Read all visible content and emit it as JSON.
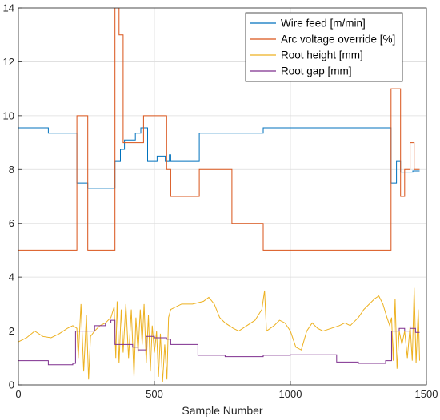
{
  "chart_data": {
    "type": "line",
    "title": "",
    "xlabel": "Sample Number",
    "ylabel": "",
    "xlim": [
      0,
      1500
    ],
    "ylim": [
      0,
      14
    ],
    "xticks": [
      0,
      500,
      1000,
      1500
    ],
    "yticks": [
      0,
      2,
      4,
      6,
      8,
      10,
      12,
      14
    ],
    "grid": true,
    "legend": "top-right",
    "series": [
      {
        "name": "Wire feed [m/min]",
        "color": "#0072BD",
        "step": true,
        "points": [
          [
            0,
            9.55
          ],
          [
            110,
            9.35
          ],
          [
            215,
            7.5
          ],
          [
            255,
            7.3
          ],
          [
            355,
            8.3
          ],
          [
            375,
            8.75
          ],
          [
            390,
            9.1
          ],
          [
            430,
            9.35
          ],
          [
            450,
            9.55
          ],
          [
            475,
            8.3
          ],
          [
            510,
            8.5
          ],
          [
            540,
            8.3
          ],
          [
            555,
            8.55
          ],
          [
            560,
            8.3
          ],
          [
            665,
            9.35
          ],
          [
            900,
            9.55
          ],
          [
            1370,
            7.5
          ],
          [
            1390,
            8.3
          ],
          [
            1405,
            7.9
          ],
          [
            1450,
            7.95
          ],
          [
            1475,
            7.95
          ]
        ]
      },
      {
        "name": "Arc voltage override [%]",
        "color": "#D95319",
        "step": true,
        "points": [
          [
            0,
            5
          ],
          [
            215,
            10
          ],
          [
            255,
            5
          ],
          [
            355,
            14
          ],
          [
            370,
            13
          ],
          [
            385,
            9
          ],
          [
            430,
            9
          ],
          [
            460,
            10
          ],
          [
            545,
            8
          ],
          [
            560,
            7
          ],
          [
            665,
            8
          ],
          [
            785,
            6
          ],
          [
            900,
            5
          ],
          [
            1370,
            11
          ],
          [
            1405,
            7
          ],
          [
            1420,
            8
          ],
          [
            1440,
            9
          ],
          [
            1455,
            8
          ],
          [
            1475,
            8
          ]
        ]
      },
      {
        "name": "Root height [mm]",
        "color": "#EDB120",
        "step": false,
        "points": [
          [
            0,
            1.6
          ],
          [
            30,
            1.75
          ],
          [
            60,
            2.0
          ],
          [
            90,
            1.8
          ],
          [
            120,
            1.75
          ],
          [
            150,
            1.9
          ],
          [
            180,
            2.1
          ],
          [
            200,
            2.2
          ],
          [
            215,
            2.1
          ],
          [
            220,
            1.0
          ],
          [
            230,
            3.0
          ],
          [
            240,
            0.5
          ],
          [
            250,
            2.6
          ],
          [
            258,
            0.2
          ],
          [
            265,
            1.8
          ],
          [
            280,
            2.0
          ],
          [
            300,
            2.2
          ],
          [
            320,
            2.3
          ],
          [
            340,
            2.5
          ],
          [
            352,
            2.9
          ],
          [
            358,
            1.0
          ],
          [
            363,
            3.1
          ],
          [
            370,
            0.8
          ],
          [
            378,
            2.8
          ],
          [
            385,
            1.2
          ],
          [
            395,
            3.0
          ],
          [
            405,
            1.0
          ],
          [
            415,
            2.8
          ],
          [
            425,
            0.3
          ],
          [
            432,
            2.5
          ],
          [
            440,
            1.2
          ],
          [
            448,
            2.8
          ],
          [
            455,
            1.5
          ],
          [
            462,
            3.0
          ],
          [
            470,
            0.8
          ],
          [
            478,
            2.6
          ],
          [
            485,
            0.5
          ],
          [
            492,
            2.2
          ],
          [
            500,
            1.2
          ],
          [
            508,
            2.0
          ],
          [
            515,
            0.3
          ],
          [
            522,
            1.9
          ],
          [
            530,
            0.1
          ],
          [
            538,
            1.5
          ],
          [
            546,
            0.2
          ],
          [
            552,
            2.5
          ],
          [
            560,
            2.8
          ],
          [
            600,
            3.0
          ],
          [
            640,
            3.0
          ],
          [
            680,
            3.1
          ],
          [
            700,
            3.25
          ],
          [
            720,
            3.0
          ],
          [
            740,
            2.5
          ],
          [
            760,
            2.3
          ],
          [
            790,
            2.1
          ],
          [
            810,
            2.0
          ],
          [
            840,
            2.2
          ],
          [
            870,
            2.4
          ],
          [
            895,
            2.8
          ],
          [
            905,
            3.5
          ],
          [
            912,
            2.0
          ],
          [
            940,
            2.2
          ],
          [
            960,
            2.4
          ],
          [
            980,
            2.3
          ],
          [
            1000,
            2.0
          ],
          [
            1020,
            1.4
          ],
          [
            1040,
            1.3
          ],
          [
            1060,
            2.0
          ],
          [
            1080,
            2.3
          ],
          [
            1100,
            2.1
          ],
          [
            1120,
            2.0
          ],
          [
            1150,
            2.1
          ],
          [
            1180,
            2.2
          ],
          [
            1200,
            2.3
          ],
          [
            1220,
            2.2
          ],
          [
            1250,
            2.5
          ],
          [
            1270,
            2.8
          ],
          [
            1290,
            3.0
          ],
          [
            1310,
            3.2
          ],
          [
            1325,
            3.3
          ],
          [
            1340,
            3.0
          ],
          [
            1355,
            2.5
          ],
          [
            1365,
            2.2
          ],
          [
            1372,
            2.5
          ],
          [
            1378,
            0.9
          ],
          [
            1385,
            3.2
          ],
          [
            1392,
            0.6
          ],
          [
            1400,
            2.0
          ],
          [
            1410,
            1.5
          ],
          [
            1420,
            2.0
          ],
          [
            1430,
            1.0
          ],
          [
            1440,
            2.2
          ],
          [
            1448,
            0.9
          ],
          [
            1455,
            3.6
          ],
          [
            1462,
            0.8
          ],
          [
            1470,
            2.8
          ],
          [
            1475,
            0.9
          ]
        ]
      },
      {
        "name": "Root gap [mm]",
        "color": "#7E2F8E",
        "step": true,
        "points": [
          [
            0,
            0.9
          ],
          [
            110,
            0.75
          ],
          [
            200,
            0.8
          ],
          [
            210,
            2.0
          ],
          [
            250,
            2.0
          ],
          [
            280,
            2.2
          ],
          [
            320,
            2.3
          ],
          [
            340,
            2.4
          ],
          [
            355,
            1.5
          ],
          [
            420,
            1.4
          ],
          [
            440,
            1.3
          ],
          [
            470,
            1.8
          ],
          [
            500,
            1.75
          ],
          [
            545,
            1.7
          ],
          [
            560,
            1.5
          ],
          [
            640,
            1.5
          ],
          [
            660,
            1.1
          ],
          [
            760,
            1.05
          ],
          [
            900,
            1.1
          ],
          [
            1000,
            1.12
          ],
          [
            1100,
            1.12
          ],
          [
            1170,
            0.85
          ],
          [
            1250,
            0.8
          ],
          [
            1300,
            0.8
          ],
          [
            1350,
            0.9
          ],
          [
            1372,
            2.0
          ],
          [
            1400,
            2.1
          ],
          [
            1420,
            2.0
          ],
          [
            1440,
            2.1
          ],
          [
            1460,
            1.95
          ],
          [
            1475,
            1.95
          ]
        ]
      }
    ]
  }
}
